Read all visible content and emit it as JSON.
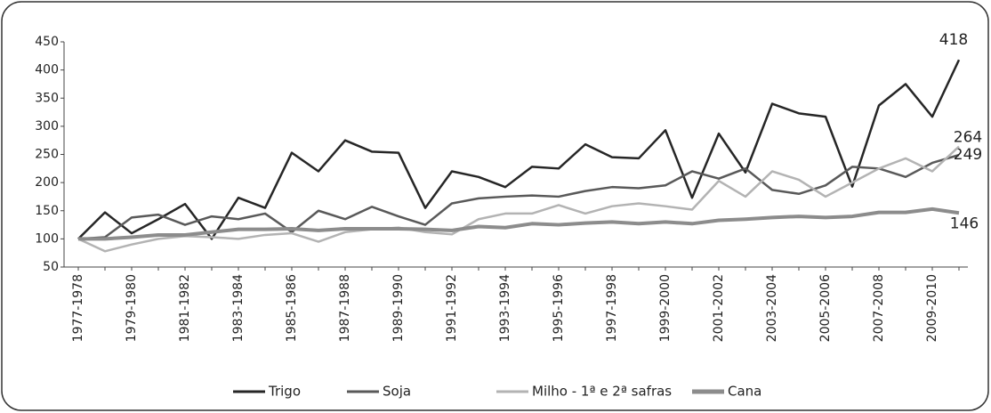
{
  "chart_data": {
    "type": "line",
    "categories": [
      "1977-1978",
      null,
      "1979-1980",
      null,
      "1981-1982",
      null,
      "1983-1984",
      null,
      "1985-1986",
      null,
      "1987-1988",
      null,
      "1989-1990",
      null,
      "1991-1992",
      null,
      "1993-1994",
      null,
      "1995-1996",
      null,
      "1997-1998",
      null,
      "1999-2000",
      null,
      "2001-2002",
      null,
      "2003-2004",
      null,
      "2005-2006",
      null,
      "2007-2008",
      null,
      "2009-2010",
      null
    ],
    "series": [
      {
        "name": "Trigo",
        "color": "#262626",
        "values": [
          100,
          147,
          110,
          135,
          162,
          100,
          173,
          155,
          253,
          220,
          275,
          255,
          253,
          155,
          220,
          210,
          192,
          228,
          225,
          268,
          245,
          243,
          293,
          173,
          287,
          218,
          340,
          323,
          317,
          193,
          337,
          375,
          317,
          418
        ]
      },
      {
        "name": "Soja",
        "color": "#595959",
        "values": [
          100,
          103,
          138,
          143,
          125,
          140,
          135,
          145,
          112,
          150,
          135,
          157,
          140,
          125,
          163,
          172,
          175,
          177,
          175,
          185,
          192,
          190,
          195,
          220,
          207,
          225,
          187,
          180,
          195,
          228,
          225,
          210,
          235,
          249
        ]
      },
      {
        "name": "Milho - 1ª e 2ª safras",
        "color": "#b3b3b3",
        "values": [
          100,
          78,
          90,
          100,
          105,
          103,
          100,
          107,
          110,
          95,
          112,
          117,
          120,
          112,
          108,
          135,
          145,
          145,
          160,
          145,
          158,
          163,
          158,
          152,
          203,
          175,
          220,
          205,
          175,
          200,
          225,
          243,
          220,
          264
        ]
      },
      {
        "name": "Cana",
        "color": "#8c8c8c",
        "values": [
          100,
          100,
          103,
          107,
          107,
          112,
          117,
          117,
          118,
          115,
          118,
          118,
          118,
          117,
          115,
          122,
          120,
          127,
          125,
          128,
          130,
          127,
          130,
          127,
          133,
          135,
          138,
          140,
          138,
          140,
          147,
          147,
          153,
          146
        ]
      }
    ],
    "ylim": [
      50,
      450
    ],
    "yticks": [
      50,
      100,
      150,
      200,
      250,
      300,
      350,
      400,
      450
    ],
    "legend": "bottom"
  }
}
